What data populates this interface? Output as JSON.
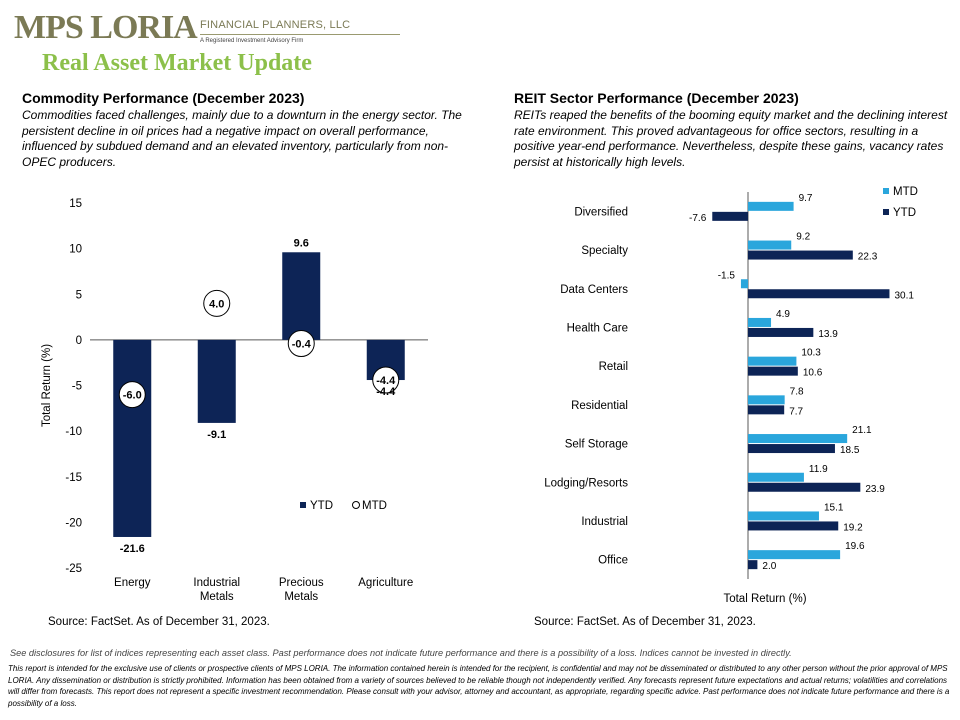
{
  "header": {
    "logo_main": "MPS LORIA",
    "logo_sub1": "FINANCIAL PLANNERS, LLC",
    "logo_sub2": "A Registered Investment Advisory Firm",
    "page_title": "Real Asset Market Update"
  },
  "left": {
    "title": "Commodity  Performance (December 2023)",
    "text": "Commodities faced challenges, mainly due to a downturn  in the energy sector. The persistent decline in oil prices had a negative impact on overall performance,  influenced by subdued demand and an elevated inventory, particularly from non-OPEC producers.",
    "source": "Source: FactSet. As of December 31, 2023."
  },
  "right": {
    "title": "REIT Sector Performance (December 2023)",
    "text": "REITs reaped the benefits of the booming equity market and the declining interest rate environment.  This proved advantageous for office sectors, resulting in a positive year-end performance. Nevertheless, despite these gains, vacancy rates persist at historically high levels.",
    "source": "Source: FactSet. As of December 31, 2023."
  },
  "footer": {
    "disclaimer1": "See disclosures for list of indices representing each asset class. Past performance does not indicate future performance and there is a possibility of a loss. Indices cannot be invested in directly.",
    "disclaimer2": "This report is intended for the exclusive use of clients or prospective clients of MPS LORIA. The information contained herein is intended for the recipient, is confidential and may not be disseminated or distributed to any other person without the prior approval of MPS LORIA. Any dissemination or distribution is strictly prohibited. Information has been obtained from a variety of sources believed to be reliable though not independently verified. Any forecasts represent future expectations and actual returns; volatilities and correlations will differ from forecasts. This report does not represent a specific investment recommendation. Please consult with your advisor, attorney and accountant, as appropriate, regarding specific advice. Past performance does not indicate future performance and there is a possibility of a loss."
  },
  "colors": {
    "navy": "#0d2456",
    "light_blue": "#2aa6dc",
    "green_title": "#8cc04a",
    "logo": "#7b7a55"
  },
  "chart_data": [
    {
      "type": "bar",
      "categories": [
        "Energy",
        "Industrial Metals",
        "Precious Metals",
        "Agriculture"
      ],
      "category_lines": [
        [
          "Energy"
        ],
        [
          "Industrial",
          "Metals"
        ],
        [
          "Precious",
          "Metals"
        ],
        [
          "Agriculture"
        ]
      ],
      "series": [
        {
          "name": "YTD",
          "values": [
            -21.6,
            -9.1,
            9.6,
            -4.4
          ],
          "style": "bar"
        },
        {
          "name": "MTD",
          "values": [
            -6.0,
            4.0,
            -0.4,
            -4.4
          ],
          "style": "circle-marker"
        }
      ],
      "ylabel": "Total Return (%)",
      "ylim": [
        -25,
        15
      ],
      "yticks": [
        15,
        10,
        5,
        0,
        -5,
        -10,
        -15,
        -20,
        -25
      ],
      "legend": "bottom-right",
      "grid": false
    },
    {
      "type": "bar",
      "orientation": "horizontal",
      "categories": [
        "Diversified",
        "Specialty",
        "Data Centers",
        "Health Care",
        "Retail",
        "Residential",
        "Self Storage",
        "Lodging/Resorts",
        "Industrial",
        "Office"
      ],
      "series": [
        {
          "name": "MTD",
          "values": [
            9.7,
            9.2,
            -1.5,
            4.9,
            10.3,
            7.8,
            21.1,
            11.9,
            15.1,
            19.6
          ]
        },
        {
          "name": "YTD",
          "values": [
            -7.6,
            22.3,
            30.1,
            13.9,
            10.6,
            7.7,
            18.5,
            23.9,
            19.2,
            2.0
          ]
        }
      ],
      "xlabel": "Total Return (%)",
      "legend": "top-right",
      "grid": false
    }
  ]
}
